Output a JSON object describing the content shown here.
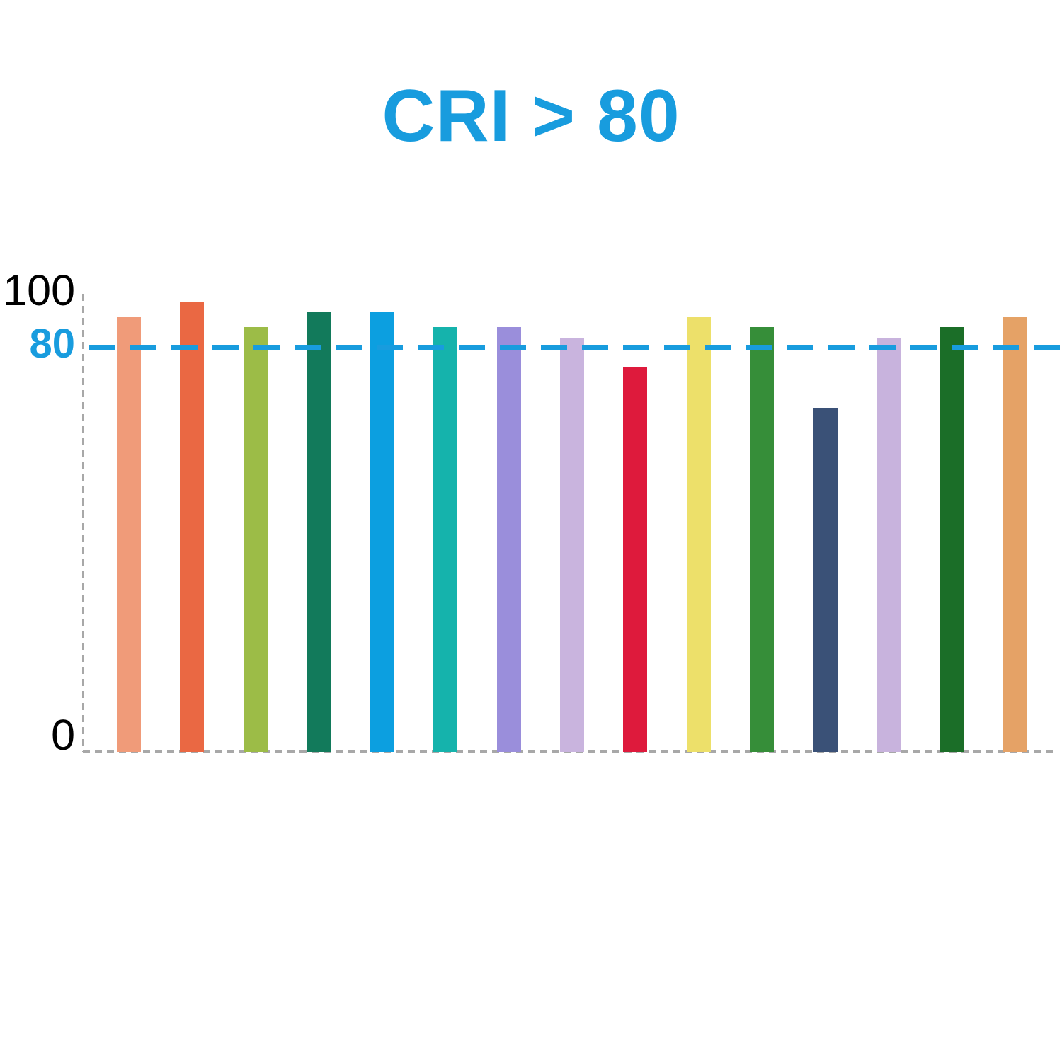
{
  "chart_data": {
    "type": "bar",
    "title": "CRI > 80",
    "title_color": "#189CDE",
    "ylim": [
      0,
      100
    ],
    "y_tick_labels": [
      "100",
      "80",
      "0"
    ],
    "tick_color": "#000000",
    "axis_line_color": "#A8A8A8",
    "grid": "off",
    "legend": "none",
    "reference_line": {
      "value": 80,
      "label": "80",
      "color": "#189CDE",
      "style": "dashed"
    },
    "bars": [
      {
        "value": 86,
        "color": "#F09B79"
      },
      {
        "value": 89,
        "color": "#EA6843"
      },
      {
        "value": 84,
        "color": "#9CBC47"
      },
      {
        "value": 87,
        "color": "#127A5B"
      },
      {
        "value": 87,
        "color": "#0C9FE0"
      },
      {
        "value": 84,
        "color": "#15B3AC"
      },
      {
        "value": 84,
        "color": "#9A8EDB"
      },
      {
        "value": 82,
        "color": "#C9B4DE"
      },
      {
        "value": 76,
        "color": "#DE1A3C"
      },
      {
        "value": 86,
        "color": "#EDE06A"
      },
      {
        "value": 84,
        "color": "#368E39"
      },
      {
        "value": 68,
        "color": "#3A5177"
      },
      {
        "value": 82,
        "color": "#C8B3DD"
      },
      {
        "value": 84,
        "color": "#1B6E28"
      },
      {
        "value": 86,
        "color": "#E5A266"
      }
    ]
  }
}
